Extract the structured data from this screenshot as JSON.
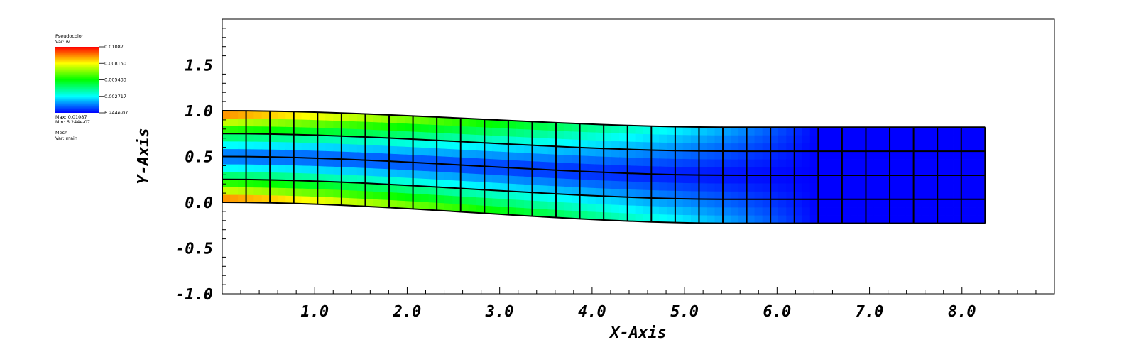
{
  "legend": {
    "plot_type": "Pseudocolor",
    "var_line": "Var: w",
    "tick_labels": [
      "0.01087",
      "0.008150",
      "0.005433",
      "0.002717",
      "6.244e-07"
    ],
    "max_line": "Max: 0.01087",
    "min_line": "Min: 6.244e-07",
    "mesh_title": "Mesh",
    "mesh_var_line": "Var: main"
  },
  "chart_data": {
    "type": "heatmap",
    "xlabel": "X-Axis",
    "ylabel": "Y-Axis",
    "xlim": [
      0,
      9.0
    ],
    "ylim": [
      -1.0,
      2.0
    ],
    "x_tick_labels": [
      "1.0",
      "2.0",
      "3.0",
      "4.0",
      "5.0",
      "6.0",
      "7.0",
      "8.0"
    ],
    "x_ticks": [
      1,
      2,
      3,
      4,
      5,
      6,
      7,
      8
    ],
    "y_tick_labels": [
      "-1.0",
      "-0.5",
      "0.0",
      "0.5",
      "1.0",
      "1.5"
    ],
    "y_ticks": [
      -1.0,
      -0.5,
      0.0,
      0.5,
      1.0,
      1.5
    ],
    "variable_range": [
      6.244e-07,
      0.01087
    ],
    "mesh": {
      "cols": 32,
      "rows": 4,
      "x_end": 8.25,
      "free_end_top": 0.82,
      "free_end_bottom": -0.23,
      "fixed_end_top": 1.0,
      "fixed_end_bottom": 0.0,
      "deformation_ends_at_x": 5.5
    },
    "colormap": [
      "#0000ff",
      "#00ffff",
      "#00ff00",
      "#ffff00",
      "#ff0000"
    ],
    "grid": false
  }
}
